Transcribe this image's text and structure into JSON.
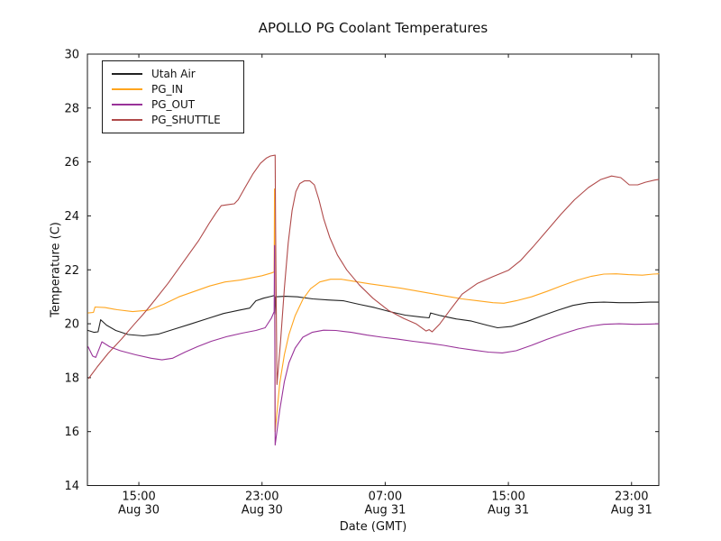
{
  "chart_data": {
    "type": "line",
    "title": "APOLLO PG Coolant Temperatures",
    "xlabel": "Date (GMT)",
    "ylabel": "Temperature (C)",
    "x_unit": "hours_since_Aug30_0000_GMT",
    "xlim": [
      11.66,
      48.77
    ],
    "ylim": [
      14,
      30
    ],
    "grid": false,
    "legend_position": "upper left",
    "y_ticks": [
      14,
      16,
      18,
      20,
      22,
      24,
      26,
      28,
      30
    ],
    "x_ticks": [
      {
        "value": 15,
        "time": "15:00",
        "date": "Aug 30"
      },
      {
        "value": 23,
        "time": "23:00",
        "date": "Aug 30"
      },
      {
        "value": 31,
        "time": "07:00",
        "date": "Aug 31"
      },
      {
        "value": 39,
        "time": "15:00",
        "date": "Aug 31"
      },
      {
        "value": 47,
        "time": "23:00",
        "date": "Aug 31"
      }
    ],
    "series": [
      {
        "name": "Utah Air",
        "color": "#222222",
        "points": [
          [
            11.7,
            19.75
          ],
          [
            12.1,
            19.68
          ],
          [
            12.35,
            19.7
          ],
          [
            12.52,
            20.15
          ],
          [
            12.9,
            19.95
          ],
          [
            13.5,
            19.75
          ],
          [
            14.3,
            19.6
          ],
          [
            15.3,
            19.55
          ],
          [
            16.3,
            19.62
          ],
          [
            17.3,
            19.8
          ],
          [
            18.3,
            19.98
          ],
          [
            19.5,
            20.2
          ],
          [
            20.5,
            20.38
          ],
          [
            21.5,
            20.5
          ],
          [
            22.2,
            20.58
          ],
          [
            22.6,
            20.85
          ],
          [
            23.1,
            20.95
          ],
          [
            23.6,
            21.02
          ],
          [
            23.81,
            21.05
          ],
          [
            23.84,
            20.35
          ],
          [
            23.88,
            21.0
          ],
          [
            24.5,
            21.02
          ],
          [
            25.3,
            21.0
          ],
          [
            26.3,
            20.92
          ],
          [
            27.3,
            20.88
          ],
          [
            28.3,
            20.85
          ],
          [
            29.3,
            20.72
          ],
          [
            30.3,
            20.6
          ],
          [
            31.3,
            20.45
          ],
          [
            32.3,
            20.32
          ],
          [
            33.3,
            20.25
          ],
          [
            33.85,
            20.22
          ],
          [
            33.95,
            20.4
          ],
          [
            34.6,
            20.3
          ],
          [
            35.6,
            20.18
          ],
          [
            36.6,
            20.1
          ],
          [
            37.6,
            19.95
          ],
          [
            38.3,
            19.85
          ],
          [
            39.2,
            19.9
          ],
          [
            40.2,
            20.08
          ],
          [
            41.2,
            20.3
          ],
          [
            42.2,
            20.5
          ],
          [
            43.2,
            20.68
          ],
          [
            44.2,
            20.78
          ],
          [
            45.2,
            20.8
          ],
          [
            46.2,
            20.78
          ],
          [
            47.2,
            20.78
          ],
          [
            48.2,
            20.8
          ],
          [
            48.75,
            20.8
          ]
        ]
      },
      {
        "name": "PG_IN",
        "color": "#ffa51e",
        "points": [
          [
            11.7,
            20.4
          ],
          [
            12.05,
            20.42
          ],
          [
            12.15,
            20.62
          ],
          [
            12.8,
            20.6
          ],
          [
            13.6,
            20.52
          ],
          [
            14.6,
            20.45
          ],
          [
            15.6,
            20.5
          ],
          [
            16.6,
            20.72
          ],
          [
            17.6,
            21.0
          ],
          [
            18.6,
            21.2
          ],
          [
            19.6,
            21.4
          ],
          [
            20.6,
            21.55
          ],
          [
            21.6,
            21.62
          ],
          [
            22.3,
            21.7
          ],
          [
            23.0,
            21.78
          ],
          [
            23.6,
            21.88
          ],
          [
            23.79,
            21.92
          ],
          [
            23.81,
            25.0
          ],
          [
            23.85,
            16.0
          ],
          [
            24.15,
            17.8
          ],
          [
            24.45,
            18.85
          ],
          [
            24.75,
            19.6
          ],
          [
            25.15,
            20.3
          ],
          [
            25.65,
            20.9
          ],
          [
            26.15,
            21.3
          ],
          [
            26.75,
            21.55
          ],
          [
            27.45,
            21.65
          ],
          [
            28.15,
            21.65
          ],
          [
            29.0,
            21.57
          ],
          [
            30.0,
            21.48
          ],
          [
            31.0,
            21.4
          ],
          [
            32.0,
            21.32
          ],
          [
            33.0,
            21.22
          ],
          [
            34.0,
            21.12
          ],
          [
            35.0,
            21.02
          ],
          [
            36.0,
            20.92
          ],
          [
            37.0,
            20.85
          ],
          [
            38.0,
            20.78
          ],
          [
            38.7,
            20.76
          ],
          [
            39.5,
            20.85
          ],
          [
            40.5,
            21.0
          ],
          [
            41.5,
            21.2
          ],
          [
            42.5,
            21.42
          ],
          [
            43.5,
            21.62
          ],
          [
            44.4,
            21.76
          ],
          [
            45.2,
            21.84
          ],
          [
            46.0,
            21.85
          ],
          [
            46.8,
            21.82
          ],
          [
            47.7,
            21.8
          ],
          [
            48.4,
            21.84
          ],
          [
            48.75,
            21.85
          ]
        ]
      },
      {
        "name": "PG_OUT",
        "color": "#993399",
        "points": [
          [
            11.7,
            19.15
          ],
          [
            12.0,
            18.8
          ],
          [
            12.2,
            18.75
          ],
          [
            12.6,
            19.33
          ],
          [
            13.1,
            19.15
          ],
          [
            13.8,
            19.0
          ],
          [
            14.8,
            18.85
          ],
          [
            15.8,
            18.72
          ],
          [
            16.5,
            18.66
          ],
          [
            17.2,
            18.72
          ],
          [
            18.0,
            18.95
          ],
          [
            18.8,
            19.15
          ],
          [
            19.7,
            19.35
          ],
          [
            20.7,
            19.52
          ],
          [
            21.7,
            19.65
          ],
          [
            22.6,
            19.75
          ],
          [
            23.2,
            19.85
          ],
          [
            23.6,
            20.2
          ],
          [
            23.79,
            20.45
          ],
          [
            23.81,
            22.9
          ],
          [
            23.85,
            15.5
          ],
          [
            24.15,
            16.8
          ],
          [
            24.45,
            17.85
          ],
          [
            24.75,
            18.55
          ],
          [
            25.15,
            19.1
          ],
          [
            25.65,
            19.5
          ],
          [
            26.25,
            19.68
          ],
          [
            27.0,
            19.76
          ],
          [
            27.8,
            19.75
          ],
          [
            28.8,
            19.68
          ],
          [
            29.8,
            19.58
          ],
          [
            30.8,
            19.5
          ],
          [
            31.8,
            19.43
          ],
          [
            32.8,
            19.35
          ],
          [
            33.8,
            19.28
          ],
          [
            34.8,
            19.2
          ],
          [
            35.8,
            19.1
          ],
          [
            36.8,
            19.02
          ],
          [
            37.7,
            18.95
          ],
          [
            38.6,
            18.92
          ],
          [
            39.5,
            19.0
          ],
          [
            40.5,
            19.2
          ],
          [
            41.5,
            19.42
          ],
          [
            42.5,
            19.62
          ],
          [
            43.5,
            19.8
          ],
          [
            44.4,
            19.92
          ],
          [
            45.2,
            19.98
          ],
          [
            46.2,
            20.0
          ],
          [
            47.2,
            19.98
          ],
          [
            48.2,
            19.99
          ],
          [
            48.75,
            20.0
          ]
        ]
      },
      {
        "name": "PG_SHUTTLE",
        "color": "#b04a4a",
        "points": [
          [
            11.75,
            17.98
          ],
          [
            12.3,
            18.4
          ],
          [
            13.0,
            18.9
          ],
          [
            13.9,
            19.45
          ],
          [
            14.7,
            19.98
          ],
          [
            15.2,
            20.3
          ],
          [
            15.5,
            20.5
          ],
          [
            16.0,
            20.85
          ],
          [
            16.9,
            21.5
          ],
          [
            17.9,
            22.3
          ],
          [
            18.9,
            23.1
          ],
          [
            19.6,
            23.75
          ],
          [
            20.0,
            24.1
          ],
          [
            20.35,
            24.38
          ],
          [
            20.8,
            24.42
          ],
          [
            21.2,
            24.45
          ],
          [
            21.45,
            24.6
          ],
          [
            21.9,
            25.05
          ],
          [
            22.4,
            25.55
          ],
          [
            22.9,
            25.95
          ],
          [
            23.3,
            26.15
          ],
          [
            23.55,
            26.22
          ],
          [
            23.85,
            26.25
          ],
          [
            23.88,
            23.5
          ],
          [
            23.97,
            17.75
          ],
          [
            24.2,
            19.3
          ],
          [
            24.45,
            21.3
          ],
          [
            24.7,
            23.0
          ],
          [
            24.95,
            24.2
          ],
          [
            25.2,
            24.9
          ],
          [
            25.45,
            25.2
          ],
          [
            25.75,
            25.3
          ],
          [
            26.1,
            25.3
          ],
          [
            26.4,
            25.15
          ],
          [
            26.7,
            24.6
          ],
          [
            27.0,
            23.9
          ],
          [
            27.4,
            23.2
          ],
          [
            27.9,
            22.55
          ],
          [
            28.5,
            22.0
          ],
          [
            29.3,
            21.45
          ],
          [
            30.2,
            20.95
          ],
          [
            31.2,
            20.5
          ],
          [
            32.2,
            20.2
          ],
          [
            33.0,
            20.0
          ],
          [
            33.65,
            19.73
          ],
          [
            33.85,
            19.78
          ],
          [
            34.05,
            19.7
          ],
          [
            34.55,
            20.0
          ],
          [
            35.2,
            20.5
          ],
          [
            36.0,
            21.1
          ],
          [
            37.0,
            21.5
          ],
          [
            38.0,
            21.75
          ],
          [
            39.0,
            21.98
          ],
          [
            39.8,
            22.35
          ],
          [
            40.6,
            22.85
          ],
          [
            41.5,
            23.45
          ],
          [
            42.4,
            24.05
          ],
          [
            43.3,
            24.6
          ],
          [
            44.2,
            25.05
          ],
          [
            45.0,
            25.35
          ],
          [
            45.7,
            25.48
          ],
          [
            46.3,
            25.42
          ],
          [
            46.85,
            25.15
          ],
          [
            47.4,
            25.15
          ],
          [
            47.9,
            25.25
          ],
          [
            48.5,
            25.33
          ],
          [
            48.75,
            25.35
          ]
        ]
      }
    ]
  }
}
